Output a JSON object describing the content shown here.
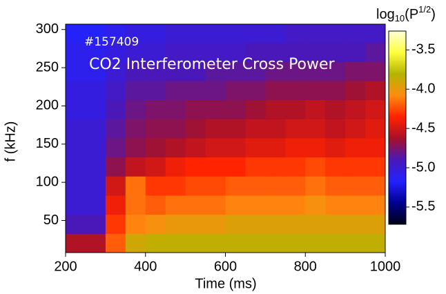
{
  "chart_data": {
    "type": "heatmap",
    "annotations": [
      "#157409",
      "CO2 Interferometer Cross Power"
    ],
    "xlabel": "Time (ms)",
    "ylabel": "f (kHz)",
    "colorbar_label": {
      "base": "log",
      "sub": "10",
      "open": "(P",
      "sup": "1/2",
      "close": ")"
    },
    "xlim": [
      200,
      1000
    ],
    "xticks": [
      200,
      400,
      600,
      800,
      1000
    ],
    "ylim": [
      8,
      307
    ],
    "yticks": [
      50,
      100,
      150,
      200,
      250,
      300
    ],
    "clim": [
      -5.72,
      -3.26
    ],
    "cticks": [
      -3.5,
      {
        "value": -4,
        "label": "-4.0"
      },
      -4.5,
      {
        "value": -5,
        "label": "-5.0"
      },
      -5.5
    ],
    "colormap": [
      "#000018",
      "#000090",
      "#2222ff",
      "#4a18b8",
      "#a8102a",
      "#ff2200",
      "#ff8c10",
      "#b4b400",
      "#ffff40",
      "#ffffd8"
    ],
    "xbins": [
      200,
      250,
      300,
      350,
      400,
      450,
      500,
      550,
      600,
      650,
      700,
      750,
      800,
      850,
      900,
      950,
      1000
    ],
    "ybins": [
      8,
      33,
      58,
      83,
      108,
      133,
      158,
      183,
      208,
      233,
      258,
      283,
      307
    ],
    "z": [
      [
        -4.6,
        -4.6,
        -4.2,
        -3.9,
        -3.85,
        -3.85,
        -3.85,
        -3.85,
        -3.85,
        -3.85,
        -3.85,
        -3.85,
        -3.85,
        -3.85,
        -3.85,
        -3.85
      ],
      [
        -4.9,
        -4.9,
        -4.3,
        -4.1,
        -4.05,
        -4.0,
        -4.0,
        -4.0,
        -3.95,
        -3.95,
        -3.95,
        -3.95,
        -3.95,
        -3.95,
        -3.95,
        -3.95
      ],
      [
        -5.0,
        -5.0,
        -4.4,
        -4.15,
        -4.2,
        -4.15,
        -4.15,
        -4.15,
        -4.1,
        -4.1,
        -4.1,
        -4.1,
        -4.05,
        -4.1,
        -4.1,
        -4.1
      ],
      [
        -5.0,
        -5.0,
        -4.5,
        -4.15,
        -4.3,
        -4.3,
        -4.25,
        -4.25,
        -4.2,
        -4.2,
        -4.2,
        -4.2,
        -4.15,
        -4.2,
        -4.2,
        -4.2
      ],
      [
        -5.0,
        -5.0,
        -4.7,
        -4.55,
        -4.5,
        -4.4,
        -4.35,
        -4.35,
        -4.35,
        -4.3,
        -4.3,
        -4.3,
        -4.25,
        -4.3,
        -4.3,
        -4.3
      ],
      [
        -5.0,
        -5.0,
        -4.8,
        -4.7,
        -4.65,
        -4.6,
        -4.55,
        -4.5,
        -4.5,
        -4.45,
        -4.45,
        -4.4,
        -4.4,
        -4.45,
        -4.4,
        -4.4
      ],
      [
        -5.0,
        -5.0,
        -4.85,
        -4.75,
        -4.7,
        -4.7,
        -4.65,
        -4.6,
        -4.6,
        -4.55,
        -4.55,
        -4.5,
        -4.5,
        -4.55,
        -4.5,
        -4.45
      ],
      [
        -5.05,
        -5.05,
        -4.9,
        -4.8,
        -4.75,
        -4.75,
        -4.7,
        -4.7,
        -4.7,
        -4.65,
        -4.6,
        -4.6,
        -4.55,
        -4.6,
        -4.55,
        -4.5
      ],
      [
        -5.05,
        -5.05,
        -4.95,
        -4.85,
        -4.85,
        -4.8,
        -4.8,
        -4.8,
        -4.75,
        -4.75,
        -4.7,
        -4.7,
        -4.7,
        -4.7,
        -4.65,
        -4.6
      ],
      [
        -5.1,
        -5.1,
        -5.0,
        -4.9,
        -4.9,
        -4.9,
        -4.9,
        -4.85,
        -4.85,
        -4.85,
        -4.8,
        -4.8,
        -4.8,
        -4.8,
        -4.75,
        -4.75
      ],
      [
        -5.1,
        -5.1,
        -5.05,
        -5.0,
        -5.0,
        -4.95,
        -4.95,
        -4.95,
        -4.95,
        -4.9,
        -4.9,
        -4.9,
        -4.9,
        -4.9,
        -4.9,
        -4.85
      ],
      [
        -5.15,
        -5.15,
        -5.1,
        -5.05,
        -5.05,
        -5.0,
        -5.0,
        -5.0,
        -5.0,
        -5.0,
        -5.0,
        -4.95,
        -4.95,
        -4.95,
        -4.95,
        -4.95
      ]
    ]
  }
}
